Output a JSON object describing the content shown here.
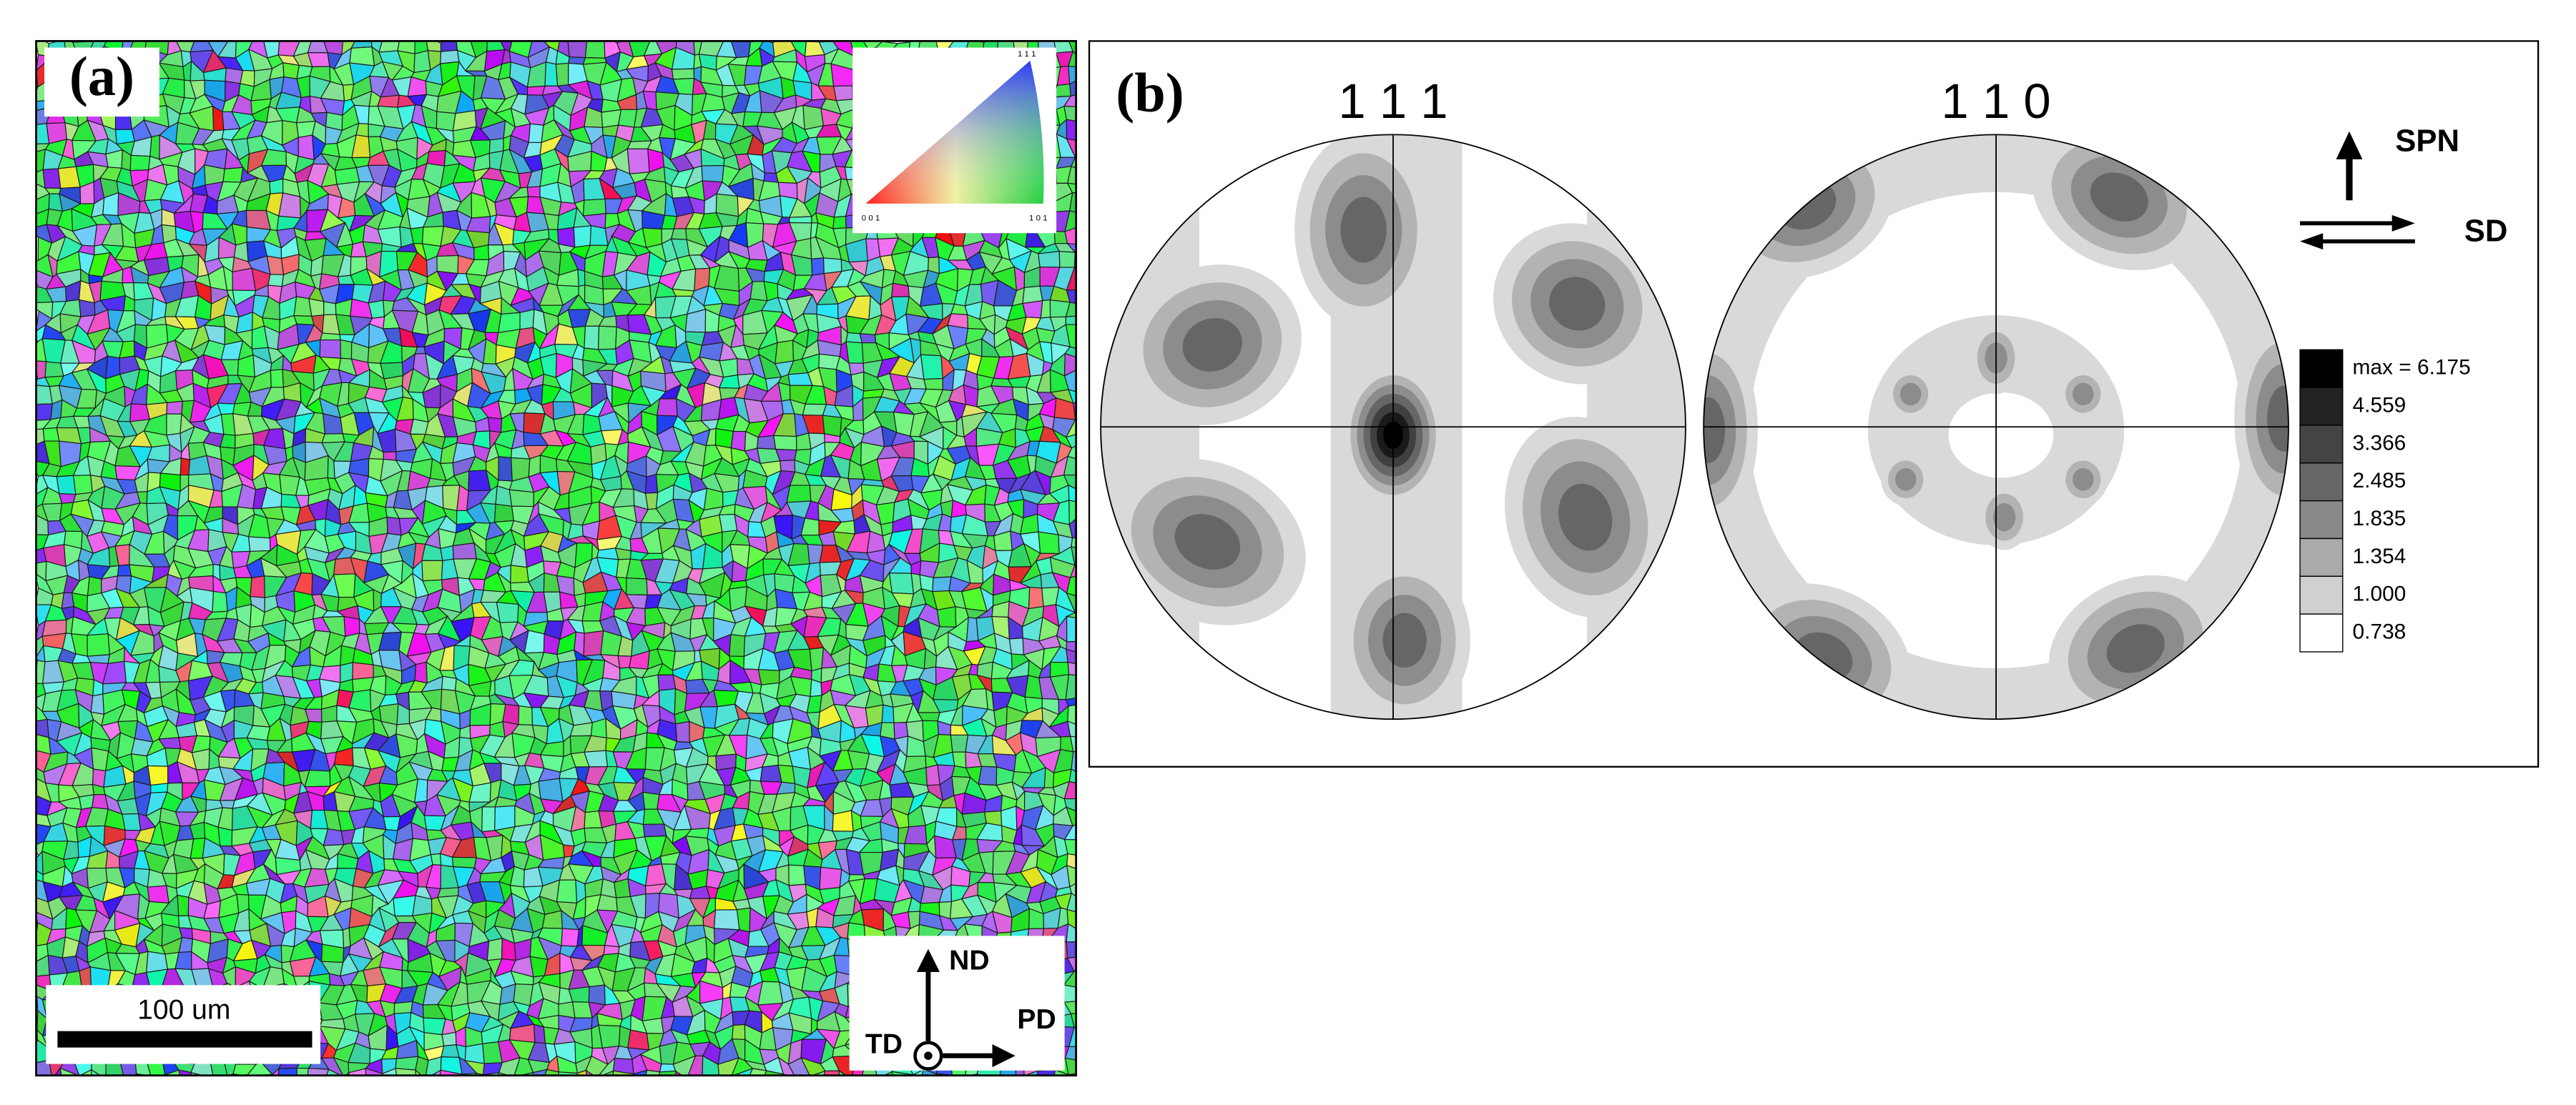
{
  "panel_a": {
    "label": "(a)",
    "ipf_key": {
      "top": "1 1 1",
      "left": "0 0 1",
      "right": "1 0 1"
    },
    "scale_bar": "100 um",
    "axes": {
      "up": "ND",
      "left": "TD",
      "right": "PD"
    }
  },
  "panel_b": {
    "label": "(b)",
    "pole_figures": [
      "1 1 1",
      "1 1 0"
    ],
    "directions": {
      "up": "SPN",
      "shear": "SD"
    },
    "legend": [
      "max = 6.175",
      "4.559",
      "3.366",
      "2.485",
      "1.835",
      "1.354",
      "1.000",
      "0.738"
    ]
  }
}
